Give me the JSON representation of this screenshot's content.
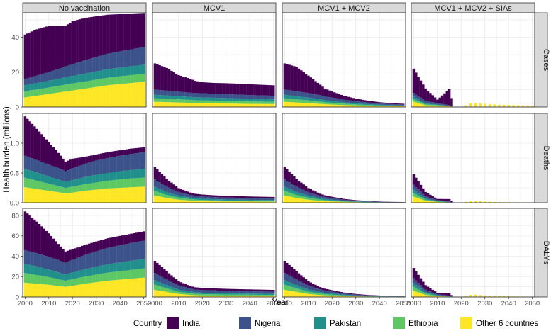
{
  "chart_data": {
    "type": "area",
    "style": "stacked-step-area, faceted grid",
    "ylabel": "Health burden (millions)",
    "xlabel": "Year",
    "x_ticks": [
      2000,
      2010,
      2020,
      2030,
      2040,
      2050
    ],
    "xlim": [
      1999,
      2051
    ],
    "grid": true,
    "legend_title": "Country",
    "legend_position": "bottom",
    "columns": [
      "No vaccination",
      "MCV1",
      "MCV1 + MCV2",
      "MCV1 + MCV2 + SIAs"
    ],
    "rows": [
      {
        "name": "Cases",
        "ylim": [
          0,
          54
        ],
        "ticks": [
          0,
          20,
          40
        ]
      },
      {
        "name": "Deaths",
        "ylim": [
          0,
          1.5
        ],
        "ticks": [
          0.0,
          0.5,
          1.0
        ]
      },
      {
        "name": "DALYs",
        "ylim": [
          0,
          87
        ],
        "ticks": [
          0,
          20,
          40,
          60,
          80
        ]
      }
    ],
    "series": [
      {
        "name": "Other 6 countries",
        "color": "#FDE725"
      },
      {
        "name": "Ethiopia",
        "color": "#5DC863"
      },
      {
        "name": "Pakistan",
        "color": "#21908C"
      },
      {
        "name": "Nigeria",
        "color": "#3B528B"
      },
      {
        "name": "India",
        "color": "#440154"
      }
    ],
    "legend_order": [
      "India",
      "Nigeria",
      "Pakistan",
      "Ethiopia",
      "Other 6 countries"
    ],
    "years": [
      2000,
      2005,
      2010,
      2015,
      2017,
      2020,
      2025,
      2030,
      2035,
      2040,
      2045,
      2050
    ],
    "panels": {
      "Cases": {
        "No vaccination": {
          "Other 6 countries": [
            5.5,
            6.5,
            7.5,
            8.5,
            9,
            9.5,
            10.5,
            11.5,
            12.5,
            13.2,
            13.8,
            14.5
          ],
          "Ethiopia": [
            3.5,
            3.6,
            3.7,
            3.8,
            3.9,
            4,
            4.1,
            4.2,
            4.3,
            4.4,
            4.5,
            4.6
          ],
          "Pakistan": [
            3.5,
            3.7,
            3.9,
            4.1,
            4.2,
            4.3,
            4.5,
            4.7,
            4.9,
            5,
            5.1,
            5.2
          ],
          "Nigeria": [
            3.5,
            4.2,
            5,
            5.8,
            6.2,
            6.8,
            7.6,
            8.3,
            8.9,
            9.3,
            9.7,
            10
          ],
          "India": [
            25.5,
            26.5,
            26.4,
            24.3,
            23.2,
            24.6,
            24.3,
            23.3,
            22.3,
            21.3,
            20.1,
            19.2
          ]
        },
        "MCV1": {
          "Other 6 countries": [
            3,
            2.8,
            2.6,
            2.4,
            2.3,
            2.2,
            2.1,
            2,
            1.9,
            1.8,
            1.75,
            1.7
          ],
          "Ethiopia": [
            2,
            1.9,
            1.8,
            1.7,
            1.6,
            1.6,
            1.55,
            1.5,
            1.45,
            1.4,
            1.35,
            1.3
          ],
          "Pakistan": [
            2,
            1.9,
            1.8,
            1.7,
            1.7,
            1.7,
            1.65,
            1.6,
            1.55,
            1.5,
            1.45,
            1.4
          ],
          "Nigeria": [
            3,
            2.8,
            2.6,
            2.4,
            2.4,
            2.4,
            2.3,
            2.25,
            2.2,
            2.15,
            2.1,
            2.05
          ],
          "India": [
            15,
            13,
            9.5,
            8,
            7,
            6.3,
            6.2,
            6.3,
            6.3,
            6.2,
            6.1,
            6
          ]
        },
        "MCV1 + MCV2": {
          "Other 6 countries": [
            3,
            2.6,
            2.2,
            1.8,
            1.6,
            1.4,
            1.1,
            0.9,
            0.7,
            0.55,
            0.45,
            0.4
          ],
          "Ethiopia": [
            2,
            1.8,
            1.6,
            1.3,
            1.15,
            1,
            0.8,
            0.6,
            0.45,
            0.35,
            0.3,
            0.25
          ],
          "Pakistan": [
            2,
            1.8,
            1.6,
            1.4,
            1.25,
            1.1,
            0.85,
            0.65,
            0.5,
            0.4,
            0.35,
            0.3
          ],
          "Nigeria": [
            3,
            2.8,
            2.6,
            2.3,
            2.1,
            1.9,
            1.5,
            1.2,
            0.95,
            0.75,
            0.6,
            0.5
          ],
          "India": [
            15,
            14,
            10,
            6,
            4.5,
            3.5,
            2.2,
            1.5,
            1,
            0.7,
            0.5,
            0.4
          ]
        },
        "MCV1 + MCV2 + SIAs": {
          "Other 6 countries": [
            3,
            1,
            0.8,
            0.4,
            0,
            0,
            2.5,
            1.8,
            1.4,
            1.2,
            1,
            0.8
          ],
          "Ethiopia": [
            1.5,
            0.5,
            0.3,
            0.1,
            0,
            0,
            0,
            0,
            0,
            0,
            0,
            0
          ],
          "Pakistan": [
            1.5,
            0.6,
            0.3,
            0.2,
            0,
            0,
            0,
            0,
            0,
            0,
            0,
            0
          ],
          "Nigeria": [
            2,
            1.5,
            0.8,
            0.5,
            0,
            0,
            0,
            0,
            0,
            0,
            0,
            0
          ],
          "India": [
            14,
            7,
            2,
            9,
            0,
            0,
            0,
            0,
            0,
            0,
            0,
            0
          ]
        }
      },
      "Deaths": {
        "No vaccination": {
          "Other 6 countries": [
            0.26,
            0.23,
            0.2,
            0.17,
            0.16,
            0.17,
            0.2,
            0.22,
            0.24,
            0.25,
            0.26,
            0.27
          ],
          "Ethiopia": [
            0.16,
            0.14,
            0.12,
            0.1,
            0.09,
            0.1,
            0.11,
            0.12,
            0.13,
            0.14,
            0.15,
            0.15
          ],
          "Pakistan": [
            0.15,
            0.14,
            0.12,
            0.11,
            0.1,
            0.11,
            0.12,
            0.13,
            0.13,
            0.14,
            0.14,
            0.15
          ],
          "Nigeria": [
            0.22,
            0.21,
            0.2,
            0.19,
            0.18,
            0.2,
            0.22,
            0.24,
            0.25,
            0.26,
            0.27,
            0.28
          ],
          "India": [
            0.66,
            0.52,
            0.38,
            0.22,
            0.16,
            0.16,
            0.12,
            0.1,
            0.1,
            0.09,
            0.09,
            0.08
          ]
        },
        "MCV1": {
          "Other 6 countries": [
            0.12,
            0.08,
            0.05,
            0.035,
            0.03,
            0.025,
            0.022,
            0.02,
            0.02,
            0.018,
            0.017,
            0.016
          ],
          "Ethiopia": [
            0.08,
            0.05,
            0.035,
            0.025,
            0.022,
            0.02,
            0.018,
            0.016,
            0.015,
            0.014,
            0.013,
            0.013
          ],
          "Pakistan": [
            0.07,
            0.05,
            0.035,
            0.026,
            0.023,
            0.021,
            0.019,
            0.018,
            0.017,
            0.016,
            0.016,
            0.015
          ],
          "Nigeria": [
            0.12,
            0.09,
            0.06,
            0.045,
            0.04,
            0.038,
            0.035,
            0.033,
            0.031,
            0.03,
            0.029,
            0.028
          ],
          "India": [
            0.21,
            0.13,
            0.065,
            0.04,
            0.035,
            0.033,
            0.03,
            0.028,
            0.027,
            0.026,
            0.025,
            0.024
          ]
        },
        "MCV1 + MCV2": {
          "Other 6 countries": [
            0.12,
            0.08,
            0.05,
            0.03,
            0.025,
            0.02,
            0.013,
            0.009,
            0.006,
            0.004,
            0.003,
            0.003
          ],
          "Ethiopia": [
            0.08,
            0.05,
            0.035,
            0.022,
            0.018,
            0.014,
            0.009,
            0.006,
            0.004,
            0.003,
            0.002,
            0.002
          ],
          "Pakistan": [
            0.07,
            0.05,
            0.035,
            0.024,
            0.02,
            0.016,
            0.01,
            0.007,
            0.005,
            0.003,
            0.002,
            0.002
          ],
          "Nigeria": [
            0.12,
            0.09,
            0.06,
            0.04,
            0.034,
            0.028,
            0.018,
            0.012,
            0.008,
            0.006,
            0.004,
            0.003
          ],
          "India": [
            0.21,
            0.13,
            0.065,
            0.035,
            0.028,
            0.022,
            0.014,
            0.009,
            0.006,
            0.004,
            0.003,
            0.002
          ]
        },
        "MCV1 + MCV2 + SIAs": {
          "Other 6 countries": [
            0.1,
            0.03,
            0.012,
            0.005,
            0,
            0,
            0.035,
            0.02,
            0.012,
            0.008,
            0.006,
            0.005
          ],
          "Ethiopia": [
            0.06,
            0.02,
            0.008,
            0.004,
            0,
            0,
            0,
            0,
            0,
            0,
            0,
            0
          ],
          "Pakistan": [
            0.06,
            0.02,
            0.008,
            0.004,
            0,
            0,
            0,
            0,
            0,
            0,
            0,
            0
          ],
          "Nigeria": [
            0.08,
            0.04,
            0.015,
            0.008,
            0,
            0,
            0,
            0,
            0,
            0,
            0,
            0
          ],
          "India": [
            0.18,
            0.07,
            0.02,
            0.04,
            0,
            0,
            0,
            0,
            0,
            0,
            0,
            0
          ]
        }
      },
      "DALYs": {
        "No vaccination": {
          "Other 6 countries": [
            14,
            13,
            12,
            10.5,
            10,
            11,
            13,
            14.5,
            16,
            17,
            18,
            19
          ],
          "Ethiopia": [
            9.5,
            8.5,
            7.5,
            6.5,
            6,
            6.5,
            7,
            7.5,
            8,
            8.3,
            8.6,
            9
          ],
          "Pakistan": [
            9,
            8.5,
            7.5,
            6.5,
            6.2,
            6.6,
            7.2,
            7.8,
            8.2,
            8.6,
            9,
            9.3
          ],
          "Nigeria": [
            13.5,
            13,
            12.5,
            12,
            11.5,
            12.5,
            14,
            15,
            16,
            16.8,
            17.5,
            18
          ],
          "India": [
            38,
            31,
            23,
            14,
            11,
            10.4,
            9.8,
            9.7,
            9.5,
            9.3,
            9.1,
            9.2
          ]
        },
        "MCV1": {
          "Other 6 countries": [
            7,
            5,
            3,
            2,
            1.7,
            1.5,
            1.4,
            1.3,
            1.25,
            1.2,
            1.15,
            1.1
          ],
          "Ethiopia": [
            5,
            3.5,
            2.2,
            1.6,
            1.4,
            1.3,
            1.2,
            1.1,
            1.05,
            1,
            0.95,
            0.9
          ],
          "Pakistan": [
            4.5,
            3.2,
            2.2,
            1.7,
            1.5,
            1.4,
            1.3,
            1.25,
            1.2,
            1.15,
            1.1,
            1.05
          ],
          "Nigeria": [
            7,
            5.5,
            4,
            3,
            2.7,
            2.6,
            2.5,
            2.4,
            2.3,
            2.25,
            2.2,
            2.15
          ],
          "India": [
            12,
            8,
            4,
            2.5,
            2.2,
            2.1,
            2,
            1.95,
            1.9,
            1.85,
            1.8,
            1.75
          ]
        },
        "MCV1 + MCV2": {
          "Other 6 countries": [
            7,
            5,
            3,
            1.9,
            1.6,
            1.3,
            0.9,
            0.6,
            0.4,
            0.3,
            0.25,
            0.2
          ],
          "Ethiopia": [
            5,
            3.5,
            2.2,
            1.4,
            1.2,
            1,
            0.65,
            0.45,
            0.3,
            0.2,
            0.15,
            0.12
          ],
          "Pakistan": [
            4.5,
            3.2,
            2.2,
            1.5,
            1.3,
            1.1,
            0.7,
            0.5,
            0.35,
            0.25,
            0.18,
            0.14
          ],
          "Nigeria": [
            7,
            5.5,
            4,
            2.7,
            2.3,
            1.9,
            1.2,
            0.8,
            0.55,
            0.4,
            0.3,
            0.25
          ],
          "India": [
            12,
            8,
            4,
            2.2,
            1.8,
            1.4,
            0.9,
            0.6,
            0.4,
            0.3,
            0.2,
            0.15
          ]
        },
        "MCV1 + MCV2 + SIAs": {
          "Other 6 countries": [
            6,
            2,
            0.8,
            0.3,
            0,
            0,
            2.5,
            1.5,
            1,
            0.7,
            0.5,
            0.4
          ],
          "Ethiopia": [
            4,
            1.3,
            0.5,
            0.2,
            0,
            0,
            0,
            0,
            0,
            0,
            0,
            0
          ],
          "Pakistan": [
            3.5,
            1.3,
            0.5,
            0.2,
            0,
            0,
            0,
            0,
            0,
            0,
            0,
            0
          ],
          "Nigeria": [
            5,
            2.5,
            1,
            0.5,
            0,
            0,
            0,
            0,
            0,
            0,
            0,
            0
          ],
          "India": [
            10,
            4.5,
            1.2,
            2.5,
            0,
            0,
            0,
            0,
            0,
            0,
            0,
            0
          ]
        }
      }
    }
  }
}
